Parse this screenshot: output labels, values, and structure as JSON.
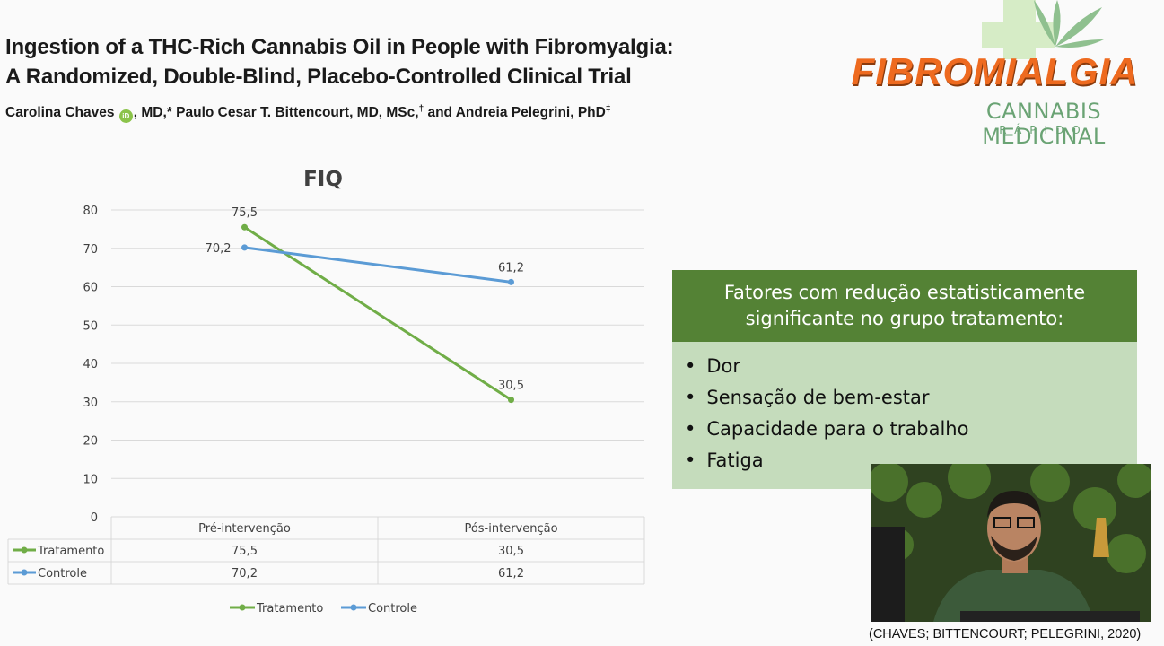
{
  "paper": {
    "title_line1": "Ingestion of a THC-Rich Cannabis Oil in People with Fibromyalgia:",
    "title_line2": "A Randomized, Double-Blind, Placebo-Controlled Clinical Trial",
    "author1": "Carolina Chaves",
    "orcid_label": "iD",
    "author1_rest": ", MD,* Paulo Cesar T. Bittencourt, MD, MSc,",
    "dagger": "†",
    "authors_and": " and Andreia Pelegrini, PhD",
    "double_dagger": "‡"
  },
  "logo": {
    "word": "FIBROMIALGIA",
    "subtitle": "CANNABIS MEDICINAL",
    "tagline": "RÁPIDO",
    "colors": {
      "orange": "#ee6a1f",
      "green": "#6aa374",
      "leaf": "#8fc08f"
    }
  },
  "chart_data": {
    "type": "line",
    "title": "FIQ",
    "categories": [
      "Pré-intervenção",
      "Pós-intervenção"
    ],
    "series": [
      {
        "name": "Tratamento",
        "values": [
          75.5,
          30.5
        ],
        "labels": [
          "75,5",
          "30,5"
        ],
        "color": "#70ad47"
      },
      {
        "name": "Controle",
        "values": [
          70.2,
          61.2
        ],
        "labels": [
          "70,2",
          "61,2"
        ],
        "color": "#5b9bd5"
      }
    ],
    "ylim": [
      0,
      80
    ],
    "yticks": [
      0,
      10,
      20,
      30,
      40,
      50,
      60,
      70,
      80
    ],
    "grid": true,
    "legend": "bottom",
    "data_table": true
  },
  "info_box": {
    "header": "Fatores com redução estatisticamente significante no grupo tratamento:",
    "items": [
      "Dor",
      "Sensação de bem-estar",
      "Capacidade para o trabalho",
      "Fatiga"
    ],
    "colors": {
      "header_bg": "#548235",
      "body_bg": "#c5dcbc"
    }
  },
  "citation": "(CHAVES; BITTENCOURT; PELEGRINI, 2020)"
}
